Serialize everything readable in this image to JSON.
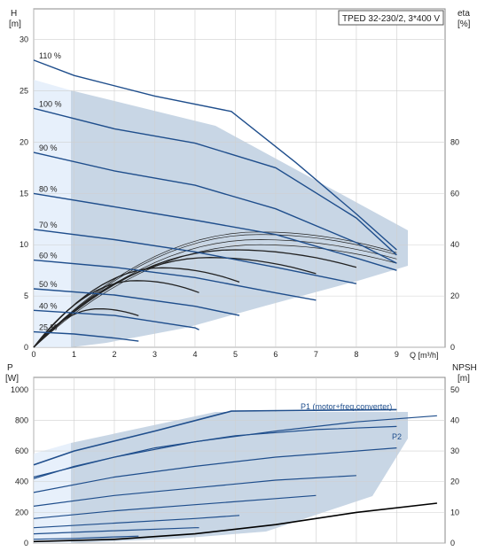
{
  "title": "TPED 32-230/2, 3*400 V",
  "colors": {
    "curve": "#1f4e8c",
    "fill": "#c8d6e5",
    "fill_light": "#e7f0fb",
    "grid": "#cfcfcf",
    "eff": "#222222"
  },
  "chart_data": [
    {
      "type": "line",
      "title": "",
      "axes": {
        "xlabel": "Q [m³/h]",
        "ylabel_left": [
          "H",
          "[m]"
        ],
        "ylabel_right": [
          "eta",
          "[%]"
        ],
        "xlim": [
          0,
          10.2
        ],
        "ylim_left": [
          0,
          33
        ],
        "ylim_right": [
          0,
          132
        ],
        "xticks": [
          0,
          1,
          2,
          3,
          4,
          5,
          6,
          7,
          8,
          9
        ],
        "yticks_left": [
          0,
          5,
          10,
          15,
          20,
          25,
          30
        ],
        "yticks_right": [
          0,
          20,
          40,
          60,
          80
        ]
      },
      "grid": true,
      "speed_labels": [
        "110 %",
        "100 %",
        "90 %",
        "80 %",
        "70 %",
        "60 %",
        "50 %",
        "40 %",
        "25 %"
      ],
      "series": [
        {
          "label": "110 %",
          "x": [
            0,
            1,
            3,
            4.9,
            6.5,
            8,
            9
          ],
          "y": [
            28,
            26.5,
            24.5,
            23,
            18,
            13,
            9.5
          ]
        },
        {
          "label": "100 %",
          "x": [
            0,
            2,
            4,
            6,
            8,
            9
          ],
          "y": [
            23.3,
            21.3,
            19.9,
            17.5,
            12.6,
            9
          ]
        },
        {
          "label": "90 %",
          "x": [
            0,
            2,
            4,
            6,
            8,
            9
          ],
          "y": [
            19,
            17.2,
            15.8,
            13.5,
            10.2,
            8.2
          ]
        },
        {
          "label": "80 %",
          "x": [
            0,
            2,
            4,
            6,
            8,
            9
          ],
          "y": [
            15,
            13.7,
            12.4,
            11,
            8.7,
            7.5
          ]
        },
        {
          "label": "70 %",
          "x": [
            0,
            2,
            4,
            6,
            7.5,
            8
          ],
          "y": [
            11.5,
            10.5,
            9.3,
            7.8,
            6.6,
            6.2
          ]
        },
        {
          "label": "60 %",
          "x": [
            0,
            2,
            4,
            6,
            7
          ],
          "y": [
            8.5,
            7.8,
            6.8,
            5.3,
            4.6
          ]
        },
        {
          "label": "50 %",
          "x": [
            0,
            2,
            4,
            5.1
          ],
          "y": [
            5.7,
            5.1,
            4.0,
            3.1
          ]
        },
        {
          "label": "40 %",
          "x": [
            0,
            2,
            4,
            4.1
          ],
          "y": [
            3.6,
            3.1,
            1.9,
            1.7
          ]
        },
        {
          "label": "25 %",
          "x": [
            0,
            1,
            2,
            2.6
          ],
          "y": [
            1.5,
            1.3,
            0.9,
            0.6
          ]
        }
      ],
      "efficiency_peaks_pct": [
        45,
        44,
        42,
        40,
        38,
        35,
        31,
        26,
        15
      ]
    },
    {
      "type": "line",
      "title": "",
      "axes": {
        "ylabel_left": [
          "P",
          "[W]"
        ],
        "ylabel_right": [
          "NPSH",
          "[m]"
        ],
        "xlim": [
          0,
          10.2
        ],
        "ylim_left": [
          0,
          1080
        ],
        "ylim_right": [
          0,
          54
        ],
        "yticks_left": [
          0,
          200,
          400,
          600,
          800,
          1000
        ],
        "yticks_right": [
          0,
          10,
          20,
          30,
          40,
          50
        ]
      },
      "grid": true,
      "annotations": [
        "P1 (motor+freq.converter)",
        "P2"
      ],
      "series": [
        {
          "name": "P1 (motor+freq.converter)",
          "x": [
            0,
            1,
            3,
            4.9,
            7,
            9
          ],
          "y": [
            510,
            600,
            730,
            860,
            865,
            870
          ]
        },
        {
          "name": "P2",
          "x": [
            0,
            1,
            3,
            5,
            7,
            9
          ],
          "y": [
            420,
            500,
            620,
            700,
            740,
            760
          ]
        },
        {
          "x": [
            0,
            2,
            4,
            6,
            8,
            10
          ],
          "y": [
            430,
            560,
            660,
            730,
            790,
            830
          ]
        },
        {
          "x": [
            0,
            2,
            4,
            6,
            8,
            9
          ],
          "y": [
            330,
            430,
            500,
            560,
            600,
            620
          ]
        },
        {
          "x": [
            0,
            2,
            4,
            6,
            8
          ],
          "y": [
            240,
            310,
            360,
            410,
            440
          ]
        },
        {
          "x": [
            0,
            2,
            4,
            6,
            7
          ],
          "y": [
            160,
            210,
            250,
            290,
            310
          ]
        },
        {
          "x": [
            0,
            2,
            4,
            5.1
          ],
          "y": [
            100,
            130,
            160,
            180
          ]
        },
        {
          "x": [
            0,
            2,
            4,
            4.1
          ],
          "y": [
            60,
            80,
            100,
            100
          ]
        },
        {
          "x": [
            0,
            1,
            2,
            2.6
          ],
          "y": [
            25,
            30,
            40,
            45
          ]
        }
      ],
      "npsh": {
        "x": [
          0,
          2,
          4,
          6,
          8,
          10
        ],
        "y": [
          0.5,
          1.2,
          3,
          6,
          10,
          13
        ]
      }
    }
  ]
}
